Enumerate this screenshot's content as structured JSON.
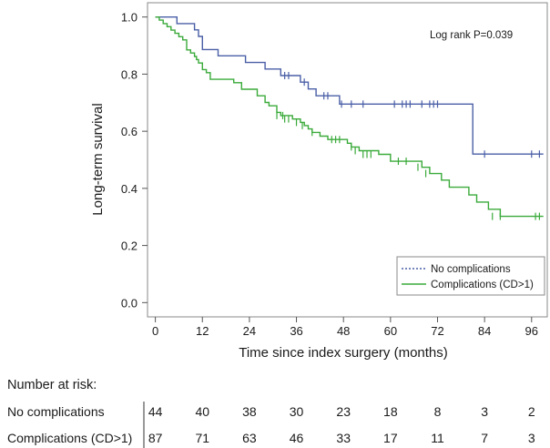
{
  "chart_data": {
    "type": "line",
    "subtype": "kaplan-meier",
    "title": "",
    "xlabel": "Time since index surgery (months)",
    "ylabel": "Long-term survival",
    "annotation": "Log rank P=0.039",
    "xlim": [
      -2,
      100
    ],
    "ylim": [
      -0.05,
      1.05
    ],
    "xticks": [
      0,
      12,
      24,
      36,
      48,
      60,
      72,
      84,
      96
    ],
    "yticks": [
      0.0,
      0.2,
      0.4,
      0.6,
      0.8,
      1.0
    ],
    "ytick_labels": [
      "0.0",
      "0.2",
      "0.4",
      "0.6",
      "0.8",
      "1.0"
    ],
    "legend_position": "bottom-right",
    "series": [
      {
        "name": "No complications",
        "color": "#4a5fa6",
        "steps": [
          [
            0,
            1.0
          ],
          [
            5.5,
            0.977
          ],
          [
            10,
            0.955
          ],
          [
            11,
            0.932
          ],
          [
            12,
            0.886
          ],
          [
            16,
            0.864
          ],
          [
            23,
            0.841
          ],
          [
            28,
            0.818
          ],
          [
            32,
            0.795
          ],
          [
            37,
            0.772
          ],
          [
            39,
            0.748
          ],
          [
            41,
            0.724
          ],
          [
            47,
            0.695
          ],
          [
            81,
            0.52
          ],
          [
            99,
            0.52
          ]
        ],
        "censored": [
          [
            33,
            0.795
          ],
          [
            34,
            0.795
          ],
          [
            38,
            0.772
          ],
          [
            43,
            0.724
          ],
          [
            44,
            0.724
          ],
          [
            47.5,
            0.695
          ],
          [
            50,
            0.695
          ],
          [
            53,
            0.695
          ],
          [
            61,
            0.695
          ],
          [
            63,
            0.695
          ],
          [
            64,
            0.695
          ],
          [
            65,
            0.695
          ],
          [
            68,
            0.695
          ],
          [
            70,
            0.695
          ],
          [
            71,
            0.695
          ],
          [
            72,
            0.695
          ],
          [
            84,
            0.52
          ],
          [
            96,
            0.52
          ],
          [
            98,
            0.52
          ]
        ]
      },
      {
        "name": "Complications (CD>1)",
        "color": "#3aaa3a",
        "steps": [
          [
            0,
            1.0
          ],
          [
            1,
            0.989
          ],
          [
            2,
            0.977
          ],
          [
            3,
            0.966
          ],
          [
            4,
            0.954
          ],
          [
            5,
            0.943
          ],
          [
            6,
            0.931
          ],
          [
            7,
            0.92
          ],
          [
            8,
            0.885
          ],
          [
            9,
            0.874
          ],
          [
            10,
            0.862
          ],
          [
            10.5,
            0.851
          ],
          [
            11,
            0.839
          ],
          [
            12,
            0.816
          ],
          [
            13,
            0.805
          ],
          [
            14,
            0.782
          ],
          [
            20,
            0.77
          ],
          [
            22,
            0.747
          ],
          [
            26,
            0.724
          ],
          [
            28,
            0.701
          ],
          [
            29,
            0.689
          ],
          [
            31,
            0.666
          ],
          [
            32,
            0.655
          ],
          [
            35,
            0.643
          ],
          [
            37,
            0.631
          ],
          [
            38,
            0.62
          ],
          [
            39,
            0.608
          ],
          [
            40,
            0.596
          ],
          [
            42,
            0.583
          ],
          [
            44,
            0.571
          ],
          [
            49,
            0.558
          ],
          [
            50,
            0.545
          ],
          [
            52,
            0.532
          ],
          [
            57,
            0.519
          ],
          [
            60,
            0.495
          ],
          [
            68,
            0.474
          ],
          [
            70,
            0.452
          ],
          [
            73,
            0.429
          ],
          [
            75,
            0.404
          ],
          [
            80,
            0.377
          ],
          [
            82,
            0.352
          ],
          [
            85,
            0.327
          ],
          [
            88,
            0.302
          ],
          [
            99,
            0.302
          ]
        ],
        "censored": [
          [
            31,
            0.655
          ],
          [
            32.5,
            0.655
          ],
          [
            33,
            0.643
          ],
          [
            34,
            0.643
          ],
          [
            36,
            0.631
          ],
          [
            37.5,
            0.62
          ],
          [
            40,
            0.596
          ],
          [
            45,
            0.571
          ],
          [
            46,
            0.571
          ],
          [
            47,
            0.571
          ],
          [
            50,
            0.545
          ],
          [
            51,
            0.532
          ],
          [
            53,
            0.519
          ],
          [
            54,
            0.519
          ],
          [
            55,
            0.519
          ],
          [
            62,
            0.495
          ],
          [
            64,
            0.495
          ],
          [
            67,
            0.474
          ],
          [
            69,
            0.452
          ],
          [
            86,
            0.302
          ],
          [
            88,
            0.302
          ],
          [
            97,
            0.302
          ],
          [
            98,
            0.302
          ]
        ]
      }
    ],
    "number_at_risk": {
      "title": "Number at risk:",
      "rows": [
        {
          "label": "No complications",
          "values": [
            44,
            40,
            38,
            30,
            23,
            18,
            8,
            3,
            2
          ]
        },
        {
          "label": "Complications (CD>1)",
          "values": [
            87,
            71,
            63,
            46,
            33,
            17,
            11,
            7,
            3
          ]
        }
      ]
    }
  }
}
